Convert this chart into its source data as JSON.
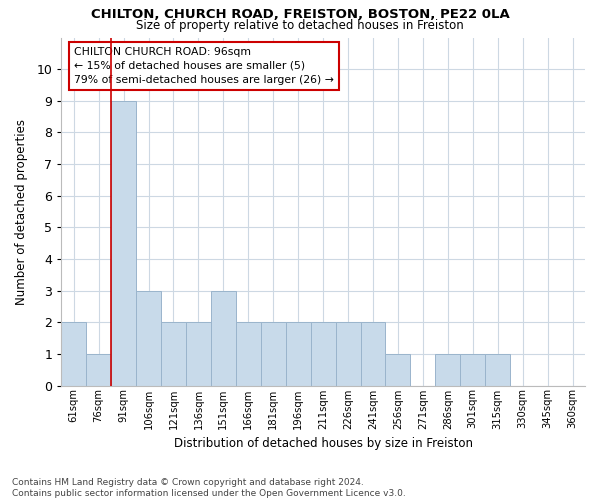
{
  "title1": "CHILTON, CHURCH ROAD, FREISTON, BOSTON, PE22 0LA",
  "title2": "Size of property relative to detached houses in Freiston",
  "xlabel": "Distribution of detached houses by size in Freiston",
  "ylabel": "Number of detached properties",
  "categories": [
    "61sqm",
    "76sqm",
    "91sqm",
    "106sqm",
    "121sqm",
    "136sqm",
    "151sqm",
    "166sqm",
    "181sqm",
    "196sqm",
    "211sqm",
    "226sqm",
    "241sqm",
    "256sqm",
    "271sqm",
    "286sqm",
    "301sqm",
    "315sqm",
    "330sqm",
    "345sqm",
    "360sqm"
  ],
  "values": [
    2,
    1,
    9,
    3,
    2,
    2,
    3,
    2,
    2,
    2,
    2,
    2,
    2,
    1,
    0,
    1,
    1,
    1,
    0,
    0,
    0
  ],
  "bar_color": "#c8daea",
  "bar_edge_color": "#9ab4cc",
  "subject_bin_index": 2,
  "annotation_title": "CHILTON CHURCH ROAD: 96sqm",
  "annotation_line1": "← 15% of detached houses are smaller (5)",
  "annotation_line2": "79% of semi-detached houses are larger (26) →",
  "annotation_box_color": "#ffffff",
  "annotation_box_edge_color": "#cc0000",
  "subject_line_color": "#cc0000",
  "ylim": [
    0,
    11
  ],
  "yticks": [
    0,
    1,
    2,
    3,
    4,
    5,
    6,
    7,
    8,
    9,
    10
  ],
  "footer1": "Contains HM Land Registry data © Crown copyright and database right 2024.",
  "footer2": "Contains public sector information licensed under the Open Government Licence v3.0.",
  "bg_color": "#ffffff",
  "grid_color": "#cdd8e3"
}
